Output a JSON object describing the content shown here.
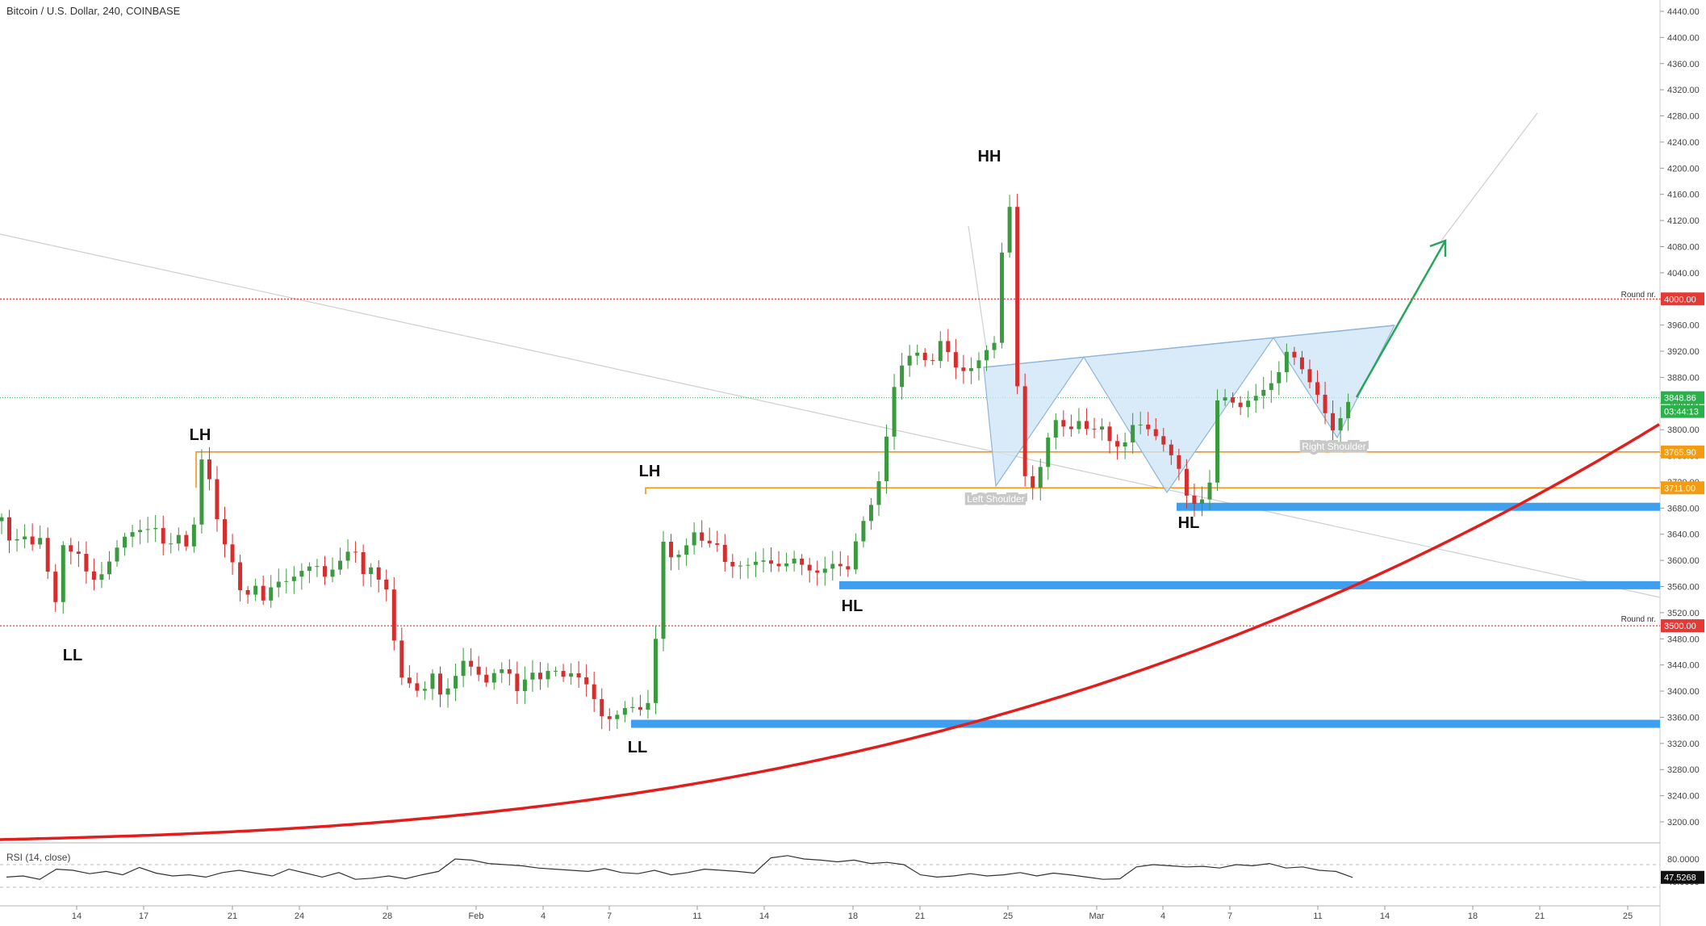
{
  "header": {
    "title": "Bitcoin / U.S. Dollar, 240, COINBASE"
  },
  "rsi": {
    "label": "RSI (14, close)",
    "current": "47.5268",
    "ticks": [
      "80.0000",
      "40.0000"
    ]
  },
  "colors": {
    "up": "#3b9a3f",
    "down": "#d32f2f",
    "curve": "#e01e1e",
    "support": "#3f9fef",
    "orange": "#f7931a",
    "red_level": "#ff0000",
    "green_level": "#2bb04c",
    "pattern_fill": "#cfe6f8",
    "pattern_line": "#8fb6d8",
    "arrow": "#26a65b"
  },
  "labels": {
    "left_shoulder": "Left Shoulder",
    "right_shoulder": "Right Shoulder",
    "round_nr": "Round nr."
  },
  "price_badges": {
    "round_4000": "4000.00",
    "last": "3848.86",
    "countdown": "03:44:13",
    "level_a": "3765.90",
    "level_b": "3711.00",
    "round_3500": "3500.00"
  },
  "chart_data": {
    "type": "candlestick",
    "title": "Bitcoin / U.S. Dollar, 240, COINBASE",
    "x_ticks": [
      "14",
      "17",
      "21",
      "24",
      "28",
      "Feb",
      "4",
      "7",
      "11",
      "14",
      "18",
      "21",
      "25",
      "Mar",
      "4",
      "7",
      "11",
      "14",
      "18",
      "21",
      "25"
    ],
    "y_ticks": [
      4440,
      4400,
      4360,
      4320,
      4280,
      4240,
      4200,
      4160,
      4120,
      4080,
      4040,
      4000,
      3960,
      3920,
      3880,
      3840,
      3800,
      3760,
      3720,
      3680,
      3640,
      3600,
      3560,
      3520,
      3480,
      3440,
      3400,
      3360,
      3320,
      3280,
      3240,
      3200
    ],
    "ylim": [
      3165,
      4455
    ],
    "swing_labels": [
      {
        "text": "LL",
        "date": "Jan 13",
        "price": 3510
      },
      {
        "text": "LH",
        "date": "Jan 19",
        "price": 3766
      },
      {
        "text": "LL",
        "date": "Feb 8",
        "price": 3350
      },
      {
        "text": "LH",
        "date": "Feb 8",
        "price": 3711
      },
      {
        "text": "HL",
        "date": "Feb 17",
        "price": 3562
      },
      {
        "text": "HH",
        "date": "Feb 24",
        "price": 4190
      },
      {
        "text": "HL",
        "date": "Mar 5",
        "price": 3680
      }
    ],
    "horizontal_levels": [
      {
        "price": 4000,
        "style": "red dotted",
        "label": "Round nr."
      },
      {
        "price": 3848.86,
        "style": "green dotted",
        "label": "last price"
      },
      {
        "price": 3765.9,
        "style": "orange"
      },
      {
        "price": 3711,
        "style": "orange"
      },
      {
        "price": 3500,
        "style": "red dotted",
        "label": "Round nr."
      }
    ],
    "support_zones": [
      {
        "price": 3682,
        "from": "Mar 5"
      },
      {
        "price": 3562,
        "from": "Feb 17"
      },
      {
        "price": 3350,
        "from": "Feb 8"
      }
    ],
    "pattern": "Inverse head and shoulders",
    "rsi_series": [
      48,
      50,
      44,
      62,
      60,
      54,
      58,
      52,
      65,
      55,
      50,
      52,
      48,
      56,
      60,
      55,
      50,
      62,
      55,
      48,
      56,
      44,
      46,
      50,
      45,
      52,
      58,
      80,
      78,
      72,
      70,
      68,
      64,
      62,
      60,
      58,
      63,
      56,
      54,
      60,
      52,
      56,
      62,
      60,
      58,
      55,
      82,
      86,
      80,
      78,
      75,
      78,
      72,
      74,
      70,
      52,
      48,
      50,
      54,
      50,
      52,
      56,
      50,
      55,
      52,
      48,
      44,
      45,
      66,
      70,
      68,
      66,
      67,
      64,
      70,
      68,
      72,
      64,
      66,
      60,
      58,
      47.5
    ]
  }
}
